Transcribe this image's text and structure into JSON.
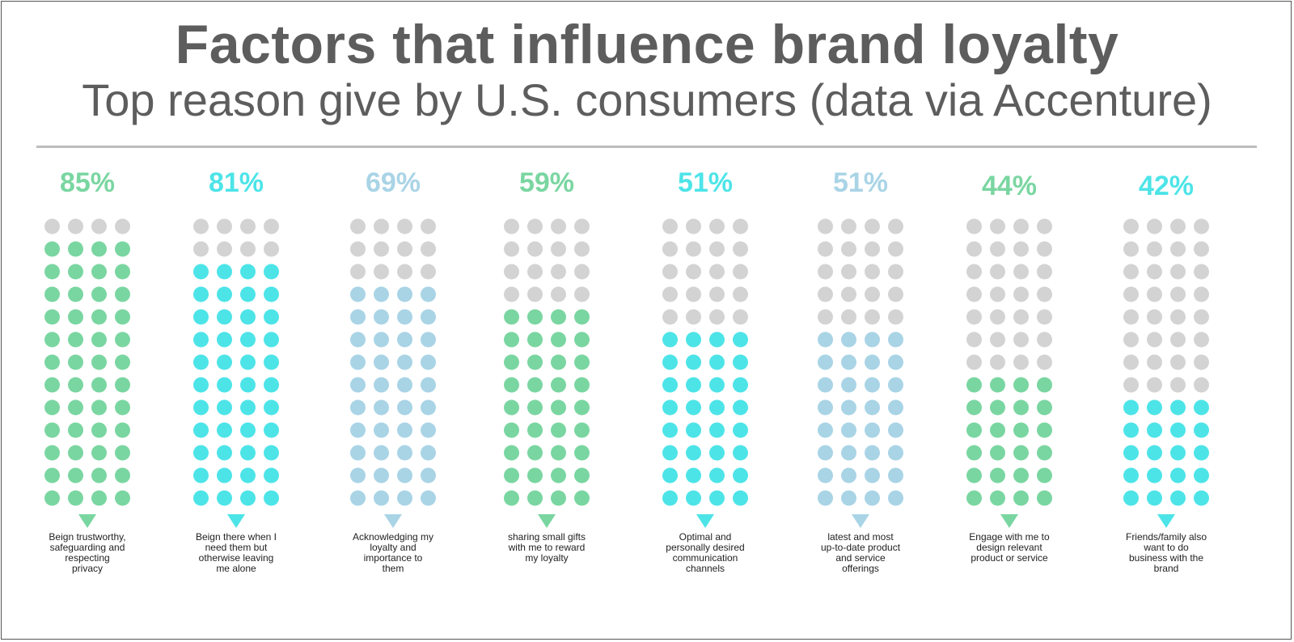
{
  "title": "Factors that influence brand loyalty",
  "subtitle": "Top reason give by U.S. consumers (data via Accenture)",
  "colors": {
    "green": "#7ad6a1",
    "cyan": "#4de4e8",
    "light_blue": "#a9d4e6",
    "empty_dot": "#d3d3d3",
    "text": "#5d5d5d"
  },
  "chart_data": {
    "type": "pictogram",
    "dots_per_column": 52,
    "grid": {
      "columns": 4,
      "rows": 13
    },
    "series": [
      {
        "label": "85%",
        "value": 85,
        "filled_dots": 48,
        "color": "green",
        "caption": [
          "Beign trustworthy,",
          "safeguarding and",
          "respecting",
          "privacy"
        ]
      },
      {
        "label": "81%",
        "value": 81,
        "filled_dots": 44,
        "color": "cyan",
        "caption": [
          "Beign there when I",
          "need them but",
          "otherwise leaving",
          "me alone"
        ]
      },
      {
        "label": "69%",
        "value": 69,
        "filled_dots": 40,
        "color": "light_blue",
        "caption": [
          "Acknowledging my",
          "loyalty and",
          "importance to",
          "them"
        ]
      },
      {
        "label": "59%",
        "value": 59,
        "filled_dots": 36,
        "color": "green",
        "caption": [
          "sharing small gifts",
          "with me to reward",
          "my loyalty"
        ]
      },
      {
        "label": "51%",
        "value": 51,
        "filled_dots": 32,
        "color": "cyan",
        "caption": [
          "Optimal and",
          "personally desired",
          "communication",
          "channels"
        ]
      },
      {
        "label": "51%",
        "value": 51,
        "filled_dots": 32,
        "color": "light_blue",
        "caption": [
          "latest and most",
          "up-to-date product",
          "and service",
          "offerings"
        ]
      },
      {
        "label": "44%",
        "value": 44,
        "filled_dots": 24,
        "color": "green",
        "caption": [
          "Engage with me to",
          "design relevant",
          "product or service"
        ]
      },
      {
        "label": "42%",
        "value": 42,
        "filled_dots": 20,
        "color": "cyan",
        "caption": [
          "Friends/family also",
          "want to do",
          "business with the",
          "brand"
        ]
      }
    ]
  }
}
